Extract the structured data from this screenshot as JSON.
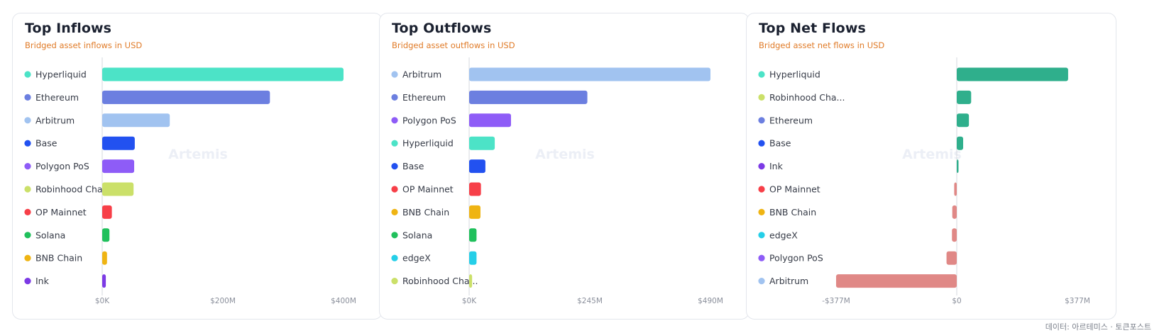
{
  "footer": "데이터: 아르테미스 · 토큰포스트",
  "watermark": "Artemis",
  "chart_data": [
    {
      "type": "bar",
      "orientation": "horizontal",
      "title": "Top Inflows",
      "subtitle": "Bridged asset inflows in USD",
      "xlim": [
        0,
        400
      ],
      "xticks": [
        "$0K",
        "$200M",
        "$400M"
      ],
      "grid": false,
      "legend": "left",
      "categories": [
        "Hyperliquid",
        "Ethereum",
        "Arbitrum",
        "Base",
        "Polygon PoS",
        "Robinhood Cha...",
        "OP Mainnet",
        "Solana",
        "BNB Chain",
        "Ink"
      ],
      "values": [
        400,
        278,
        112,
        54,
        53,
        52,
        16,
        12,
        8,
        6
      ],
      "colors": [
        "#4ce3c7",
        "#6c7fe0",
        "#a1c3f0",
        "#2251f0",
        "#8e5cf7",
        "#cbe069",
        "#f73f48",
        "#20c05c",
        "#efb413",
        "#7c3ae5"
      ]
    },
    {
      "type": "bar",
      "orientation": "horizontal",
      "title": "Top Outflows",
      "subtitle": "Bridged asset outflows in USD",
      "xlim": [
        0,
        490
      ],
      "xticks": [
        "$0K",
        "$245M",
        "$490M"
      ],
      "grid": false,
      "legend": "left",
      "categories": [
        "Arbitrum",
        "Ethereum",
        "Polygon PoS",
        "Hyperliquid",
        "Base",
        "OP Mainnet",
        "BNB Chain",
        "Solana",
        "edgeX",
        "Robinhood Cha..."
      ],
      "values": [
        490,
        240,
        85,
        52,
        33,
        24,
        23,
        15,
        15,
        6
      ],
      "colors": [
        "#a1c3f0",
        "#6c7fe0",
        "#8e5cf7",
        "#4ce3c7",
        "#2251f0",
        "#f73f48",
        "#efb413",
        "#20c05c",
        "#25cfe8",
        "#cbe069"
      ]
    },
    {
      "type": "bar",
      "orientation": "horizontal",
      "title": "Top Net Flows",
      "subtitle": "Bridged asset net flows in USD",
      "xlim": [
        -377,
        377
      ],
      "xticks": [
        "-$377M",
        "$0",
        "$377M"
      ],
      "grid": false,
      "legend": "left",
      "categories": [
        "Hyperliquid",
        "Robinhood Cha...",
        "Ethereum",
        "Base",
        "Ink",
        "OP Mainnet",
        "BNB Chain",
        "edgeX",
        "Polygon PoS",
        "Arbitrum"
      ],
      "values": [
        348,
        45,
        38,
        20,
        5,
        -8,
        -14,
        -15,
        -32,
        -377
      ],
      "dot_colors": [
        "#4ce3c7",
        "#cbe069",
        "#6c7fe0",
        "#2251f0",
        "#7c3ae5",
        "#f73f48",
        "#efb413",
        "#25cfe8",
        "#8e5cf7",
        "#a1c3f0"
      ],
      "positive_color": "#2faf8c",
      "negative_color": "#e08886"
    }
  ]
}
